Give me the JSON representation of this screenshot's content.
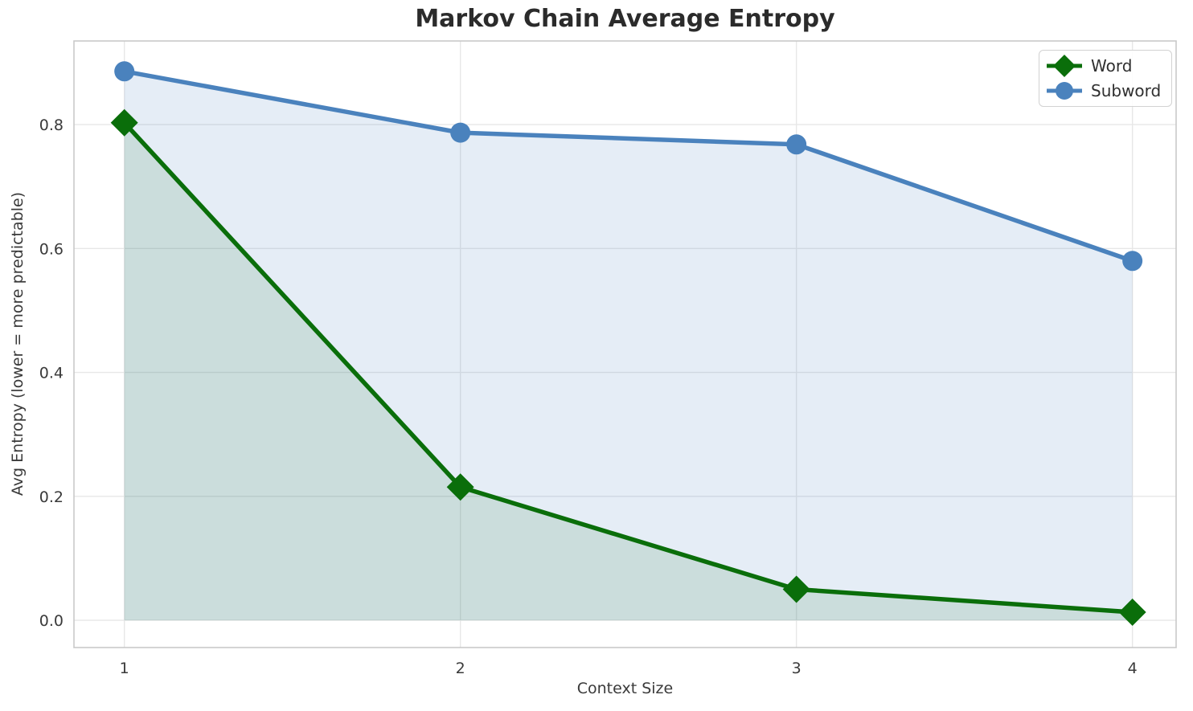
{
  "chart_data": {
    "type": "line",
    "title": "Markov Chain Average Entropy",
    "xlabel": "Context Size",
    "ylabel": "Avg Entropy (lower = more predictable)",
    "x": [
      1,
      2,
      3,
      4
    ],
    "series": [
      {
        "name": "Word",
        "values": [
          0.803,
          0.215,
          0.05,
          0.013
        ],
        "color": "#0a6e0a",
        "marker": "diamond",
        "fill_alpha": 0.12
      },
      {
        "name": "Subword",
        "values": [
          0.886,
          0.787,
          0.768,
          0.58
        ],
        "color": "#4a82bd",
        "marker": "circle",
        "fill_alpha": 0.14
      }
    ],
    "x_ticks": {
      "values": [
        1,
        2,
        3,
        4
      ],
      "labels": [
        "1",
        "2",
        "3",
        "4"
      ]
    },
    "y_ticks": {
      "values": [
        0.0,
        0.2,
        0.4,
        0.6,
        0.8
      ],
      "labels": [
        "0.0",
        "0.2",
        "0.4",
        "0.6",
        "0.8"
      ]
    },
    "xlim": [
      0.85,
      4.13
    ],
    "ylim": [
      -0.044,
      0.935
    ],
    "grid": true,
    "area_fill": true,
    "fill_baseline": 0,
    "line_width": 5.5,
    "legend_position": "upper right",
    "colors": {
      "grid": "#e7e7e7",
      "spine": "#c9c9c9",
      "tick_text": "#3a3a3a",
      "title_text": "#2b2b2b",
      "background": "#ffffff"
    }
  }
}
